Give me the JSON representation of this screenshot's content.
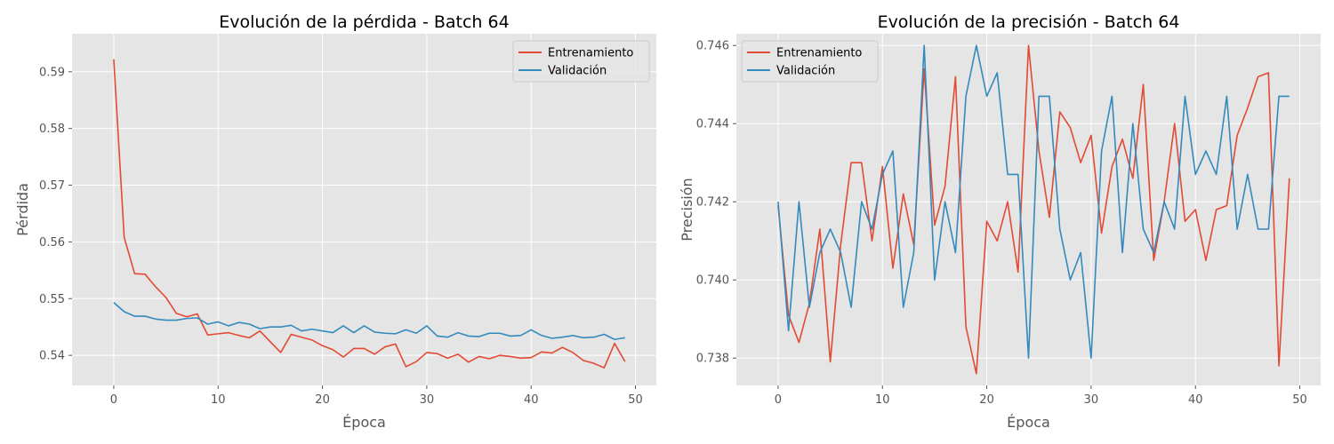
{
  "colors": {
    "background": "#ffffff",
    "plot_bg": "#e5e5e5",
    "grid": "#ffffff",
    "train": "#e24a33",
    "val": "#348abd",
    "text": "#555555"
  },
  "chart_data": [
    {
      "type": "line",
      "title": "Evolución de la pérdida - Batch 64",
      "xlabel": "Época",
      "ylabel": "Pérdida",
      "xlim": [
        -4,
        52
      ],
      "ylim": [
        0.5347,
        0.5967
      ],
      "xticks": [
        0,
        10,
        20,
        30,
        40,
        50
      ],
      "yticks": [
        0.54,
        0.55,
        0.56,
        0.57,
        0.58,
        0.59
      ],
      "ytick_labels": [
        "0.54",
        "0.55",
        "0.56",
        "0.57",
        "0.58",
        "0.59"
      ],
      "grid": true,
      "legend_position": "top-right",
      "x": [
        0,
        1,
        2,
        3,
        4,
        5,
        6,
        7,
        8,
        9,
        10,
        11,
        12,
        13,
        14,
        15,
        16,
        17,
        18,
        19,
        20,
        21,
        22,
        23,
        24,
        25,
        26,
        27,
        28,
        29,
        30,
        31,
        32,
        33,
        34,
        35,
        36,
        37,
        38,
        39,
        40,
        41,
        42,
        43,
        44,
        45,
        46,
        47,
        48,
        49
      ],
      "series": [
        {
          "name": "Entrenamiento",
          "color": "#e24a33",
          "values": [
            0.5922,
            0.5608,
            0.5544,
            0.5543,
            0.5521,
            0.5502,
            0.5474,
            0.5468,
            0.5473,
            0.5436,
            0.5438,
            0.544,
            0.5435,
            0.5431,
            0.5443,
            0.5424,
            0.5405,
            0.5437,
            0.5432,
            0.5427,
            0.5417,
            0.541,
            0.5397,
            0.5412,
            0.5412,
            0.5402,
            0.5415,
            0.542,
            0.538,
            0.5389,
            0.5405,
            0.5403,
            0.5395,
            0.5402,
            0.5388,
            0.5398,
            0.5394,
            0.54,
            0.5398,
            0.5395,
            0.5396,
            0.5406,
            0.5404,
            0.5414,
            0.5405,
            0.5391,
            0.5386,
            0.5378,
            0.5421,
            0.5389
          ]
        },
        {
          "name": "Validación",
          "color": "#348abd",
          "values": [
            0.5493,
            0.5477,
            0.5469,
            0.5469,
            0.5464,
            0.5462,
            0.5462,
            0.5465,
            0.5466,
            0.5455,
            0.5459,
            0.5452,
            0.5458,
            0.5455,
            0.5447,
            0.545,
            0.545,
            0.5453,
            0.5443,
            0.5446,
            0.5443,
            0.544,
            0.5452,
            0.544,
            0.5452,
            0.5441,
            0.5439,
            0.5438,
            0.5445,
            0.5439,
            0.5452,
            0.5434,
            0.5432,
            0.544,
            0.5434,
            0.5433,
            0.5439,
            0.5439,
            0.5434,
            0.5435,
            0.5445,
            0.5435,
            0.543,
            0.5432,
            0.5435,
            0.5431,
            0.5432,
            0.5437,
            0.5428,
            0.5431
          ]
        }
      ]
    },
    {
      "type": "line",
      "title": "Evolución de la precisión - Batch 64",
      "xlabel": "Época",
      "ylabel": "Precisión",
      "xlim": [
        -4,
        52
      ],
      "ylim": [
        0.7373,
        0.7463
      ],
      "xticks": [
        0,
        10,
        20,
        30,
        40,
        50
      ],
      "yticks": [
        0.738,
        0.74,
        0.742,
        0.744,
        0.746
      ],
      "ytick_labels": [
        "0.738",
        "0.740",
        "0.742",
        "0.744",
        "0.746"
      ],
      "grid": true,
      "legend_position": "top-left",
      "x": [
        0,
        1,
        2,
        3,
        4,
        5,
        6,
        7,
        8,
        9,
        10,
        11,
        12,
        13,
        14,
        15,
        16,
        17,
        18,
        19,
        20,
        21,
        22,
        23,
        24,
        25,
        26,
        27,
        28,
        29,
        30,
        31,
        32,
        33,
        34,
        35,
        36,
        37,
        38,
        39,
        40,
        41,
        42,
        43,
        44,
        45,
        46,
        47,
        48,
        49
      ],
      "series": [
        {
          "name": "Entrenamiento",
          "color": "#e24a33",
          "values": [
            0.7419,
            0.7391,
            0.7384,
            0.7394,
            0.7413,
            0.7379,
            0.7409,
            0.743,
            0.743,
            0.741,
            0.7429,
            0.7403,
            0.7422,
            0.7409,
            0.7454,
            0.7414,
            0.7424,
            0.7452,
            0.7388,
            0.7376,
            0.7415,
            0.741,
            0.742,
            0.7402,
            0.746,
            0.7433,
            0.7416,
            0.7443,
            0.7439,
            0.743,
            0.7437,
            0.7412,
            0.7429,
            0.7436,
            0.7426,
            0.745,
            0.7405,
            0.742,
            0.744,
            0.7415,
            0.7418,
            0.7405,
            0.7418,
            0.7419,
            0.7437,
            0.7444,
            0.7452,
            0.7453,
            0.7378,
            0.7426
          ]
        },
        {
          "name": "Validación",
          "color": "#348abd",
          "values": [
            0.742,
            0.7387,
            0.742,
            0.7393,
            0.7407,
            0.7413,
            0.7407,
            0.7393,
            0.742,
            0.7413,
            0.7427,
            0.7433,
            0.7393,
            0.7407,
            0.746,
            0.74,
            0.742,
            0.7407,
            0.7447,
            0.746,
            0.7447,
            0.7453,
            0.7427,
            0.7427,
            0.738,
            0.7447,
            0.7447,
            0.7413,
            0.74,
            0.7407,
            0.738,
            0.7433,
            0.7447,
            0.7407,
            0.744,
            0.7413,
            0.7407,
            0.742,
            0.7413,
            0.7447,
            0.7427,
            0.7433,
            0.7427,
            0.7447,
            0.7413,
            0.7427,
            0.7413,
            0.7413,
            0.7447,
            0.7447
          ]
        }
      ]
    }
  ]
}
